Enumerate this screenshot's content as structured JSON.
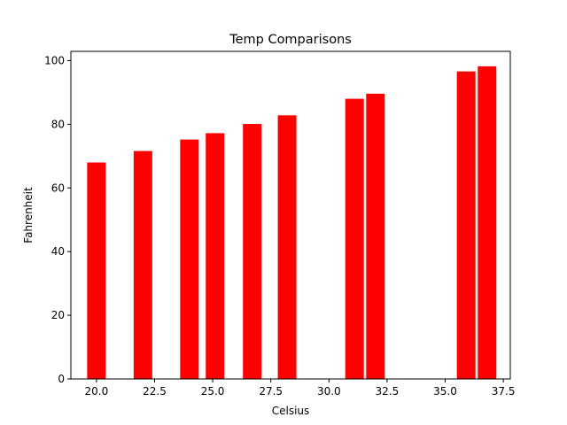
{
  "chart_data": {
    "type": "bar",
    "title": "Temp Comparisons",
    "xlabel": "Celsius",
    "ylabel": "Fahrenheit",
    "color": "#ff0000",
    "bar_width": 0.8,
    "xlim": [
      18.9,
      37.8
    ],
    "ylim": [
      0,
      102.9
    ],
    "x_ticks": [
      20.0,
      22.5,
      25.0,
      27.5,
      30.0,
      32.5,
      35.0,
      37.5
    ],
    "x_tick_labels": [
      "20.0",
      "22.5",
      "25.0",
      "27.5",
      "30.0",
      "32.5",
      "35.0",
      "37.5"
    ],
    "y_ticks": [
      0,
      20,
      40,
      60,
      80,
      100
    ],
    "y_tick_labels": [
      "0",
      "20",
      "40",
      "60",
      "80",
      "100"
    ],
    "grid": false,
    "points": [
      {
        "x": 20.0,
        "y": 68.0
      },
      {
        "x": 22.0,
        "y": 71.6
      },
      {
        "x": 24.0,
        "y": 75.2
      },
      {
        "x": 25.1,
        "y": 77.2
      },
      {
        "x": 26.7,
        "y": 80.1
      },
      {
        "x": 28.2,
        "y": 82.8
      },
      {
        "x": 31.1,
        "y": 88.0
      },
      {
        "x": 32.0,
        "y": 89.6
      },
      {
        "x": 35.9,
        "y": 96.6
      },
      {
        "x": 36.8,
        "y": 98.2
      }
    ]
  }
}
